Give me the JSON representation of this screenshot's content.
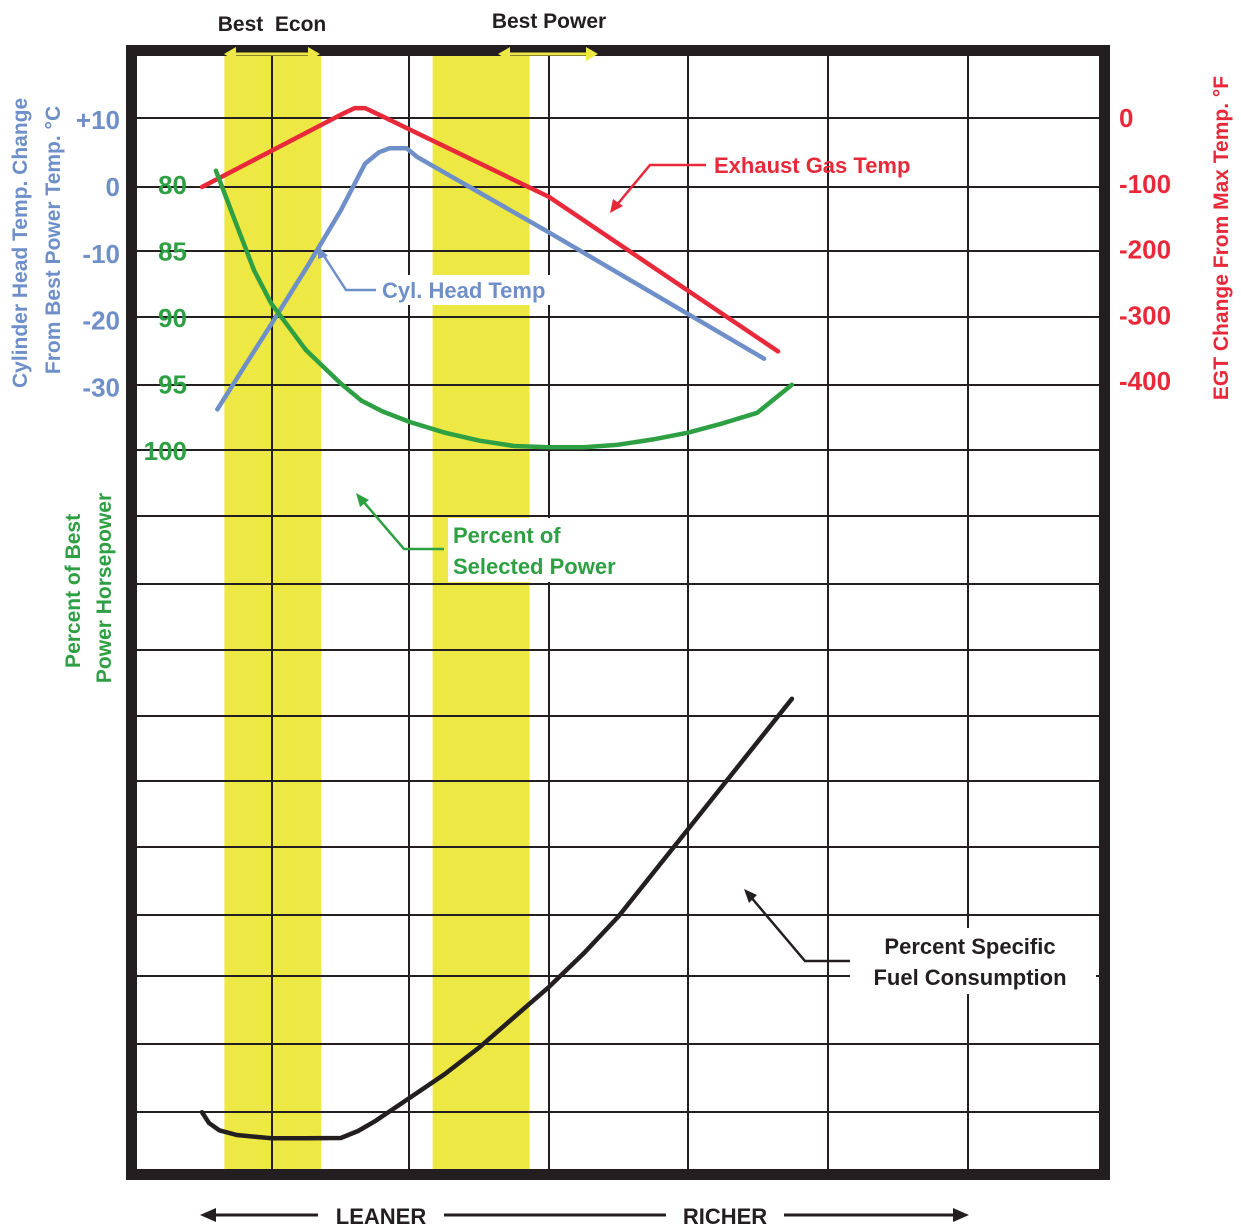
{
  "colors": {
    "cht": "#6f8fc8",
    "egt": "#e8293a",
    "power": "#2ea043",
    "bsfc": "#231f20",
    "band": "#ede843",
    "frame": "#231f20"
  },
  "chart_data": {
    "type": "line",
    "title": "",
    "bands": [
      {
        "label": "Best  Econ",
        "from": 1.0,
        "to": 2.0
      },
      {
        "label": "Best Power",
        "from": 4.0,
        "to": 5.0
      }
    ],
    "axes": {
      "cht": {
        "label_lines": [
          "Cylinder Head Temp. Change",
          "From Best Power Temp. °C"
        ],
        "ticks": [
          "+10",
          "0",
          "-10",
          "-20",
          "-30"
        ],
        "range": [
          -34,
          10
        ]
      },
      "egt": {
        "label": "EGT Change From Max Temp. °F",
        "ticks": [
          "0",
          "-100",
          "-200",
          "-300",
          "-400"
        ],
        "range": [
          -430,
          0
        ]
      },
      "power": {
        "label_lines": [
          "Percent of Best",
          "Power Horsepower"
        ],
        "ticks": [
          "100",
          "95",
          "90",
          "85",
          "80"
        ],
        "range": [
          79,
          100
        ]
      },
      "x": {
        "left_label": "LEANER",
        "right_label": "RICHER",
        "range": [
          0,
          8
        ]
      }
    },
    "series": [
      {
        "name": "Cyl. Head Temp",
        "axis": "cht",
        "x": [
          0.22,
          1.0,
          1.5,
          2.0,
          2.35,
          2.55,
          2.7,
          2.95,
          3.1,
          5.0,
          8.1
        ],
        "y": [
          -33.3,
          -20.5,
          -12.2,
          -3.5,
          3.5,
          5.2,
          5.8,
          5.8,
          4.5,
          -6.8,
          -25.7
        ]
      },
      {
        "name": "Exhaust Gas Temp",
        "axis": "egt",
        "x": [
          0.0,
          1.0,
          2.0,
          2.2,
          2.35,
          2.55,
          5.0,
          8.3
        ],
        "y": [
          -105,
          -50,
          5,
          15,
          15,
          5,
          -120,
          -355
        ]
      },
      {
        "name": "Percent of Selected Power",
        "axis": "power",
        "x": [
          0.2,
          0.5,
          0.75,
          1.0,
          1.5,
          2.0,
          2.3,
          2.6,
          3.0,
          3.5,
          4.0,
          4.5,
          5.0,
          5.5,
          6.0,
          6.5,
          7.0,
          7.5,
          8.0,
          8.5
        ],
        "y": [
          79.0,
          83.1,
          86.5,
          89.0,
          92.5,
          95.0,
          96.3,
          97.1,
          97.9,
          98.7,
          99.3,
          99.7,
          99.8,
          99.8,
          99.6,
          99.2,
          98.7,
          98.0,
          97.2,
          95.1
        ]
      },
      {
        "name": "Percent Specific Fuel Consumption",
        "axis": "bsfc",
        "x": [
          0.0,
          0.1,
          0.25,
          0.5,
          1.0,
          1.5,
          2.0,
          2.25,
          2.5,
          3.0,
          3.5,
          4.0,
          4.5,
          5.0,
          5.5,
          6.0,
          7.0,
          8.5
        ],
        "y": [
          4.3,
          2.7,
          1.6,
          0.9,
          0.4,
          0.4,
          0.45,
          1.5,
          3.0,
          6.5,
          10.0,
          14.0,
          18.5,
          23.0,
          28.0,
          33.5,
          46.5,
          66.0
        ]
      }
    ],
    "annotations": {
      "egt": "Exhaust Gas Temp",
      "cht": "Cyl. Head Temp",
      "power_line1": "Percent of",
      "power_line2": "Selected Power",
      "bsfc_line1": "Percent Specific",
      "bsfc_line2": "Fuel Consumption"
    },
    "grid": true
  }
}
